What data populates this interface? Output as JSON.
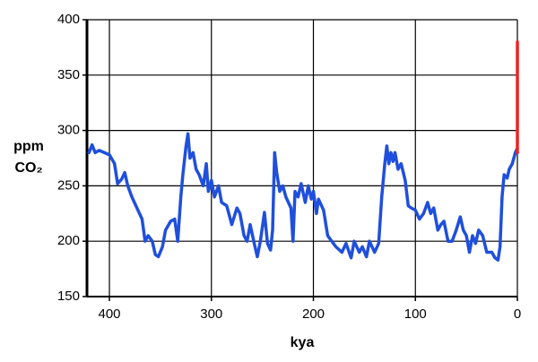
{
  "chart_data": {
    "type": "line",
    "xlabel": "kya",
    "ylabel": [
      "ppm",
      "CO₂"
    ],
    "xlim": [
      422,
      0
    ],
    "xticks": [
      400,
      300,
      200,
      100,
      0
    ],
    "ylim": [
      150,
      400
    ],
    "yticks": [
      150,
      200,
      250,
      300,
      350,
      400
    ],
    "grid": true,
    "series": [
      {
        "color": "#1f4fdc",
        "x": [
          420,
          417,
          414,
          410,
          400,
          395,
          392,
          388,
          385,
          382,
          378,
          372,
          368,
          365,
          362,
          358,
          355,
          352,
          348,
          345,
          340,
          336,
          333,
          330,
          328,
          325,
          323,
          321,
          318,
          315,
          312,
          308,
          305,
          303,
          300,
          297,
          293,
          290,
          285,
          280,
          275,
          272,
          268,
          265,
          262,
          258,
          255,
          252,
          248,
          245,
          242,
          240,
          238,
          236,
          233,
          230,
          227,
          222,
          220,
          218,
          215,
          212,
          208,
          205,
          202,
          200,
          197,
          195,
          190,
          186,
          182,
          178,
          172,
          168,
          163,
          160,
          155,
          152,
          148,
          145,
          140,
          136,
          133,
          130,
          128,
          126,
          124,
          122,
          120,
          117,
          114,
          110,
          107,
          104,
          100,
          96,
          92,
          88,
          85,
          82,
          78,
          75,
          72,
          68,
          64,
          60,
          56,
          53,
          50,
          47,
          44,
          41,
          38,
          34,
          30,
          25,
          22,
          19,
          17,
          15,
          13,
          10,
          8,
          5,
          2,
          0.5,
          0
        ],
        "values": [
          280,
          287,
          280,
          282,
          278,
          270,
          252,
          256,
          262,
          250,
          240,
          228,
          220,
          200,
          205,
          200,
          188,
          186,
          195,
          210,
          218,
          220,
          200,
          240,
          260,
          285,
          297,
          275,
          280,
          265,
          260,
          250,
          270,
          245,
          255,
          240,
          250,
          235,
          232,
          215,
          230,
          225,
          205,
          200,
          215,
          198,
          186,
          200,
          226,
          198,
          192,
          210,
          280,
          262,
          245,
          250,
          240,
          230,
          200,
          245,
          240,
          252,
          235,
          250,
          238,
          245,
          225,
          238,
          228,
          205,
          200,
          195,
          190,
          198,
          185,
          200,
          190,
          195,
          186,
          200,
          190,
          198,
          240,
          270,
          286,
          270,
          280,
          272,
          280,
          265,
          270,
          255,
          232,
          230,
          228,
          220,
          225,
          235,
          225,
          230,
          210,
          215,
          218,
          200,
          200,
          210,
          222,
          210,
          205,
          190,
          205,
          198,
          210,
          205,
          190,
          190,
          185,
          183,
          195,
          240,
          260,
          257,
          265,
          270,
          280,
          283,
          280
        ]
      },
      {
        "color": "#ee2222",
        "x": [
          0,
          0
        ],
        "values": [
          280,
          380
        ]
      }
    ]
  }
}
